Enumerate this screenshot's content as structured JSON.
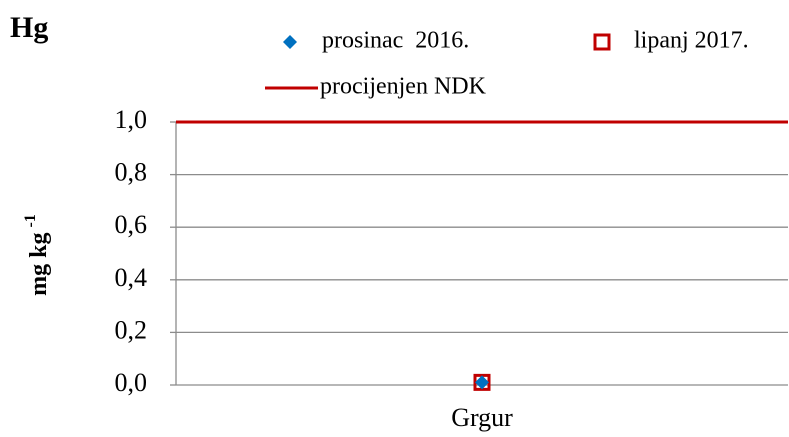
{
  "chart_data": {
    "type": "scatter",
    "title": "Hg",
    "y_label": "mg kg",
    "y_label_exponent": "-1",
    "categories": [
      "Grgur"
    ],
    "series": [
      {
        "name": "prosinac  2016.",
        "color": "#0070c0",
        "marker": "diamond",
        "values": [
          0.01
        ]
      },
      {
        "name": "lipanj 2017.",
        "color": "#c00000",
        "marker": "square",
        "values": [
          0.01
        ]
      },
      {
        "name": "procijenjen NDK",
        "color": "#c00000",
        "marker": "line",
        "values": [
          1.0
        ]
      }
    ],
    "ylim": [
      0,
      1
    ],
    "yticks": [
      {
        "value": 0,
        "label": "0,0"
      },
      {
        "value": 0.2,
        "label": "0,2"
      },
      {
        "value": 0.4,
        "label": "0,4"
      },
      {
        "value": 0.6,
        "label": "0,6"
      },
      {
        "value": 0.8,
        "label": "0,8"
      },
      {
        "value": 1,
        "label": "1,0"
      }
    ],
    "grid": true
  }
}
